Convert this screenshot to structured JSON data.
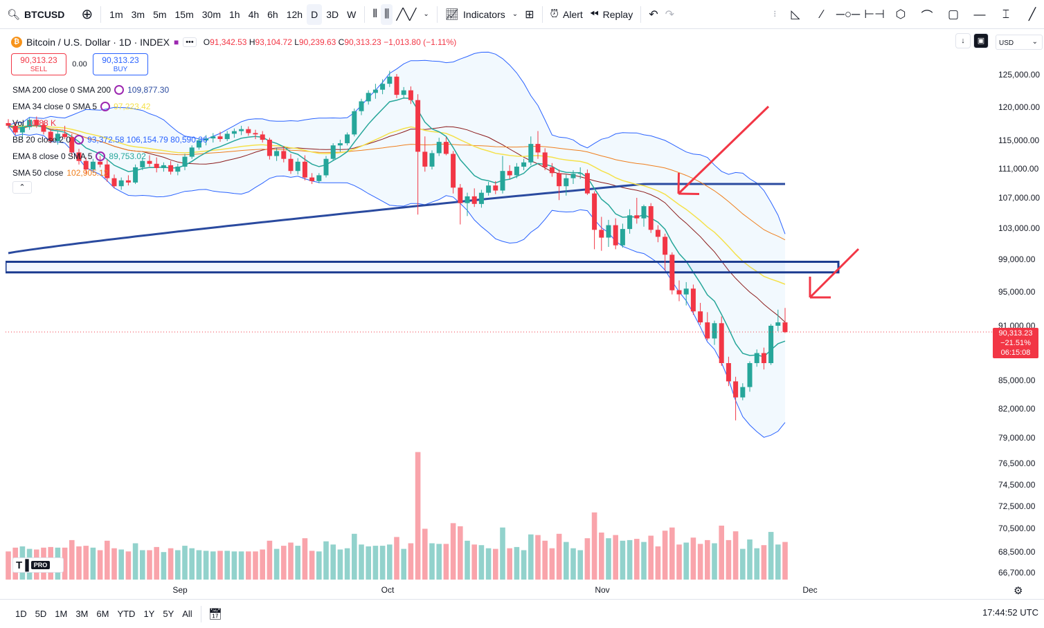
{
  "toolbar": {
    "symbol": "BTCUSD",
    "intervals": [
      "1m",
      "3m",
      "5m",
      "15m",
      "30m",
      "1h",
      "4h",
      "6h",
      "12h",
      "D",
      "3D",
      "W"
    ],
    "active_interval": "D",
    "indicators_label": "Indicators",
    "alert_label": "Alert",
    "replay_label": "Replay"
  },
  "legend": {
    "title": "Bitcoin / U.S. Dollar · 1D · INDEX",
    "more": "•••",
    "open_key": "O",
    "open": "91,342.53",
    "high_key": "H",
    "high": "93,104.72",
    "low_key": "L",
    "low": "90,239.63",
    "close_key": "C",
    "close": "90,313.23",
    "change": "−1,013.80 (−1.11%)"
  },
  "trade": {
    "sell_price": "90,313.23",
    "sell_label": "SELL",
    "spread": "0.00",
    "buy_price": "90,313.23",
    "buy_label": "BUY"
  },
  "indicators": [
    {
      "label": "SMA 200 close 0 SMA 200",
      "value": "109,877.30",
      "color": "#2a4a9f"
    },
    {
      "label": "EMA 34 close 0 SMA 5",
      "value": "97,223.42",
      "color": "#f5e14a"
    },
    {
      "label": "Vol",
      "value": "10.88 K",
      "color": "#f23645"
    },
    {
      "label": "BB 20 close 2 0",
      "value": "93,372.58  106,154.79  80,590.36",
      "color": "#2962ff"
    },
    {
      "label": "EMA 8 close 0 SMA 5",
      "value": "89,753.02",
      "color": "#26a69a"
    },
    {
      "label": "SMA 50 close",
      "value": "102,905.12",
      "color": "#ef7e1c"
    }
  ],
  "price_axis": {
    "currency": "USD",
    "ticks": [
      "125,000.00",
      "120,000.00",
      "115,000.00",
      "111,000.00",
      "107,000.00",
      "103,000.00",
      "99,000.00",
      "95,000.00",
      "91,000.00",
      "85,000.00",
      "82,000.00",
      "79,000.00",
      "76,500.00",
      "74,500.00",
      "72,500.00",
      "70,500.00",
      "68,500.00",
      "66,700.00"
    ],
    "last_price": "90,313.23",
    "last_change": "−21.51%",
    "countdown": "06:15:08"
  },
  "time_axis": {
    "labels": [
      "Sep",
      "Oct",
      "Nov",
      "Dec"
    ]
  },
  "bottom": {
    "ranges": [
      "1D",
      "5D",
      "1M",
      "3M",
      "6M",
      "YTD",
      "1Y",
      "5Y",
      "All"
    ],
    "clock": "17:44:52 UTC"
  },
  "logo": {
    "pro": "PRO"
  },
  "colors": {
    "up": "#26a69a",
    "down": "#f23645",
    "accent": "#2962ff"
  },
  "chart_data": {
    "type": "candlestick",
    "title": "Bitcoin / U.S. Dollar · 1D · INDEX",
    "ylim": [
      66700,
      127000
    ],
    "x_labels": [
      "Sep",
      "Oct",
      "Nov",
      "Dec"
    ],
    "candles_ohlc": [
      [
        117600,
        118200,
        116800,
        117200
      ],
      [
        117200,
        117800,
        115800,
        116200
      ],
      [
        116200,
        117400,
        115200,
        117000
      ],
      [
        117000,
        118400,
        116600,
        118100
      ],
      [
        118100,
        118600,
        116900,
        117300
      ],
      [
        117300,
        117900,
        115900,
        116300
      ],
      [
        116300,
        116700,
        114600,
        114900
      ],
      [
        114900,
        116400,
        114400,
        116000
      ],
      [
        116000,
        117200,
        115200,
        115500
      ],
      [
        115500,
        116000,
        112800,
        113300
      ],
      [
        113300,
        113800,
        111600,
        112100
      ],
      [
        112100,
        112600,
        110300,
        110900
      ],
      [
        110900,
        112400,
        110400,
        112000
      ],
      [
        112000,
        112800,
        111200,
        111600
      ],
      [
        111600,
        112300,
        109200,
        109700
      ],
      [
        109700,
        110200,
        108300,
        108600
      ],
      [
        108600,
        109800,
        108100,
        109400
      ],
      [
        109400,
        110100,
        108700,
        109100
      ],
      [
        109100,
        111600,
        108900,
        111200
      ],
      [
        111200,
        112400,
        110800,
        112100
      ],
      [
        112100,
        112900,
        111300,
        111700
      ],
      [
        111700,
        112600,
        110500,
        111100
      ],
      [
        111100,
        111900,
        110600,
        111500
      ],
      [
        111500,
        112100,
        110200,
        110600
      ],
      [
        110600,
        111700,
        110100,
        111300
      ],
      [
        111300,
        113100,
        110800,
        112700
      ],
      [
        112700,
        114300,
        112400,
        114000
      ],
      [
        114000,
        115300,
        113700,
        115000
      ],
      [
        115000,
        115800,
        114300,
        115300
      ],
      [
        115300,
        116100,
        114700,
        115600
      ],
      [
        115600,
        116300,
        114800,
        115200
      ],
      [
        115200,
        116400,
        114900,
        116000
      ],
      [
        116000,
        116800,
        115400,
        116400
      ],
      [
        116400,
        117200,
        115800,
        116700
      ],
      [
        116700,
        117100,
        115700,
        116100
      ],
      [
        116100,
        116600,
        115200,
        115900
      ],
      [
        115900,
        116400,
        114700,
        115100
      ],
      [
        115100,
        115400,
        112300,
        112800
      ],
      [
        112800,
        113900,
        112100,
        113500
      ],
      [
        113500,
        114200,
        111900,
        112400
      ],
      [
        112400,
        113100,
        110300,
        110700
      ],
      [
        110700,
        112500,
        110200,
        112000
      ],
      [
        112000,
        112900,
        109400,
        109800
      ],
      [
        109800,
        110400,
        108900,
        109300
      ],
      [
        109300,
        110400,
        109000,
        110100
      ],
      [
        110100,
        112800,
        109800,
        112400
      ],
      [
        112400,
        114600,
        112100,
        114300
      ],
      [
        114300,
        115100,
        113400,
        114600
      ],
      [
        114600,
        116200,
        114300,
        115900
      ],
      [
        115900,
        119800,
        115600,
        119400
      ],
      [
        119400,
        121300,
        118800,
        120900
      ],
      [
        120900,
        122600,
        120400,
        122200
      ],
      [
        122200,
        123600,
        121300,
        122700
      ],
      [
        122700,
        124300,
        122000,
        123600
      ],
      [
        123600,
        125600,
        123100,
        124700
      ],
      [
        124700,
        125100,
        121400,
        121900
      ],
      [
        121900,
        123100,
        121300,
        122600
      ],
      [
        122600,
        123200,
        120500,
        121100
      ],
      [
        121100,
        122000,
        104800,
        113400
      ],
      [
        113400,
        115600,
        110600,
        111300
      ],
      [
        111300,
        113600,
        110900,
        113200
      ],
      [
        113200,
        115400,
        112800,
        114800
      ],
      [
        114800,
        115500,
        112900,
        113100
      ],
      [
        113100,
        113500,
        107600,
        108400
      ],
      [
        108400,
        108900,
        103500,
        106300
      ],
      [
        106300,
        107700,
        104600,
        107200
      ],
      [
        107200,
        108300,
        105800,
        106200
      ],
      [
        106200,
        108100,
        105700,
        107700
      ],
      [
        107700,
        109200,
        107300,
        108700
      ],
      [
        108700,
        109300,
        107500,
        108000
      ],
      [
        108000,
        112800,
        107600,
        110700
      ],
      [
        110700,
        111500,
        109600,
        110100
      ],
      [
        110100,
        111800,
        109700,
        111300
      ],
      [
        111300,
        112400,
        110800,
        111900
      ],
      [
        111900,
        115600,
        111500,
        114500
      ],
      [
        114500,
        116400,
        112400,
        113300
      ],
      [
        113300,
        113900,
        110800,
        111200
      ],
      [
        111200,
        111800,
        109900,
        110400
      ],
      [
        110400,
        110900,
        106700,
        108600
      ],
      [
        108600,
        110200,
        107300,
        109700
      ],
      [
        109700,
        110800,
        108900,
        110300
      ],
      [
        110300,
        111200,
        109600,
        110400
      ],
      [
        110400,
        110900,
        107400,
        107600
      ],
      [
        107600,
        107900,
        100300,
        102800
      ],
      [
        102800,
        104500,
        100100,
        101800
      ],
      [
        101800,
        104100,
        100600,
        103400
      ],
      [
        103400,
        104300,
        100300,
        100800
      ],
      [
        100800,
        103600,
        100500,
        102900
      ],
      [
        102900,
        105500,
        102300,
        104700
      ],
      [
        104700,
        107000,
        103600,
        104300
      ],
      [
        104300,
        106100,
        103200,
        105900
      ],
      [
        105900,
        106300,
        102400,
        102800
      ],
      [
        102800,
        103400,
        101200,
        101900
      ],
      [
        101900,
        102300,
        97600,
        99600
      ],
      [
        99600,
        99900,
        94700,
        95200
      ],
      [
        95200,
        96400,
        93900,
        94700
      ],
      [
        94700,
        96200,
        93400,
        95400
      ],
      [
        95400,
        95900,
        92300,
        92700
      ],
      [
        92700,
        93700,
        91100,
        91400
      ],
      [
        91400,
        92600,
        89400,
        89600
      ],
      [
        89600,
        91600,
        88900,
        91300
      ],
      [
        91300,
        92100,
        86600,
        86900
      ],
      [
        86900,
        87600,
        84400,
        84900
      ],
      [
        84900,
        85400,
        80800,
        83200
      ],
      [
        83200,
        84700,
        82900,
        84300
      ],
      [
        84300,
        87100,
        83800,
        86900
      ],
      [
        86900,
        88400,
        86500,
        88000
      ],
      [
        88000,
        88600,
        86200,
        86900
      ],
      [
        86900,
        91200,
        86700,
        91000
      ],
      [
        91000,
        92900,
        90400,
        91400
      ],
      [
        91400,
        93100,
        90200,
        90300
      ]
    ],
    "indicators": {
      "SMA 200": 109877.3,
      "EMA 34": 97223.42,
      "BB 20 basis": 93372.58,
      "BB 20 upper": 106154.79,
      "BB 20 lower": 80590.36,
      "EMA 8": 89753.02,
      "SMA 50": 102905.12
    }
  }
}
